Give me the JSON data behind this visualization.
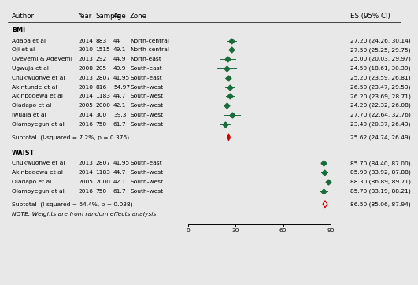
{
  "header_cols": [
    "Author",
    "Year",
    "Sample",
    "Age",
    "Zone",
    "ES (95% CI)"
  ],
  "bmi_studies": [
    {
      "author": "Agaba et al",
      "year": "2014",
      "sample": "883",
      "age": "44",
      "zone": "North-central",
      "es": 27.2,
      "ci_low": 24.26,
      "ci_high": 30.14
    },
    {
      "author": "Oji et al",
      "year": "2010",
      "sample": "1515",
      "age": "49.1",
      "zone": "North-central",
      "es": 27.5,
      "ci_low": 25.25,
      "ci_high": 29.75
    },
    {
      "author": "Oyeyemi & Adeyemi",
      "year": "2013",
      "sample": "292",
      "age": "44.9",
      "zone": "North-east",
      "es": 25.0,
      "ci_low": 20.03,
      "ci_high": 29.97
    },
    {
      "author": "Ugwuja et al",
      "year": "2008",
      "sample": "205",
      "age": "40.9",
      "zone": "South-east",
      "es": 24.5,
      "ci_low": 18.61,
      "ci_high": 30.39
    },
    {
      "author": "Chukwuonye et al",
      "year": "2013",
      "sample": "2807",
      "age": "41.95",
      "zone": "South-east",
      "es": 25.2,
      "ci_low": 23.59,
      "ci_high": 26.81
    },
    {
      "author": "Akintunde et al",
      "year": "2010",
      "sample": "816",
      "age": "54.97",
      "zone": "South-west",
      "es": 26.5,
      "ci_low": 23.47,
      "ci_high": 29.53
    },
    {
      "author": "Akinbodewa et al",
      "year": "2014",
      "sample": "1183",
      "age": "44.7",
      "zone": "South-west",
      "es": 26.2,
      "ci_low": 23.69,
      "ci_high": 28.71
    },
    {
      "author": "Oladapo et al",
      "year": "2005",
      "sample": "2000",
      "age": "42.1",
      "zone": "South-west",
      "es": 24.2,
      "ci_low": 22.32,
      "ci_high": 26.08
    },
    {
      "author": "Iwuala et al",
      "year": "2014",
      "sample": "300",
      "age": "39.3",
      "zone": "South-west",
      "es": 27.7,
      "ci_low": 22.64,
      "ci_high": 32.76
    },
    {
      "author": "Olamoyegun et al",
      "year": "2016",
      "sample": "750",
      "age": "61.7",
      "zone": "South-west",
      "es": 23.4,
      "ci_low": 20.37,
      "ci_high": 26.43
    }
  ],
  "bmi_subtotal": {
    "label": "Subtotal  (I-squared = 7.2%, p = 0.376)",
    "es": 25.62,
    "ci_low": 24.74,
    "ci_high": 26.49
  },
  "waist_studies": [
    {
      "author": "Chukwuonye et al",
      "year": "2013",
      "sample": "2807",
      "age": "41.95",
      "zone": "South-east",
      "es": 85.7,
      "ci_low": 84.4,
      "ci_high": 87.0
    },
    {
      "author": "Akinbodewa et al",
      "year": "2014",
      "sample": "1183",
      "age": "44.7",
      "zone": "South-west",
      "es": 85.9,
      "ci_low": 83.92,
      "ci_high": 87.88
    },
    {
      "author": "Oladapo et al",
      "year": "2005",
      "sample": "2000",
      "age": "42.1",
      "zone": "South-west",
      "es": 88.3,
      "ci_low": 86.89,
      "ci_high": 89.71
    },
    {
      "author": "Olamoyegun et al",
      "year": "2016",
      "sample": "750",
      "age": "61.7",
      "zone": "South-west",
      "es": 85.7,
      "ci_low": 83.19,
      "ci_high": 88.21
    }
  ],
  "waist_subtotal": {
    "label": "Subtotal  (I-squared = 64.4%, p = 0.038)",
    "es": 86.5,
    "ci_low": 85.06,
    "ci_high": 87.94
  },
  "note": "NOTE: Weights are from random effects analysis",
  "diamond_color": "#cc0000",
  "dot_color": "#1a6b3c",
  "bg_color": "#e8e8e8",
  "axis_ticks": [
    0,
    30,
    60,
    90
  ],
  "x_min": 0,
  "x_max": 90
}
